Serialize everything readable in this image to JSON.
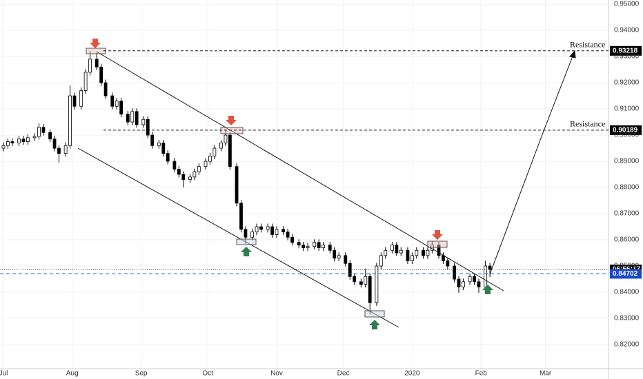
{
  "chart_data": {
    "type": "candlestick",
    "x": [
      0,
      2,
      4,
      7,
      9,
      11,
      14,
      16,
      18,
      21,
      23,
      25,
      28,
      30,
      32,
      35,
      37,
      39,
      42,
      44,
      46,
      49,
      51,
      53,
      56,
      58,
      60,
      63,
      65,
      67,
      70,
      72,
      74,
      77,
      79,
      81,
      84,
      86,
      88,
      91,
      93,
      95,
      98,
      100,
      102,
      105,
      107,
      109,
      112,
      114,
      116,
      119,
      121,
      123,
      126,
      128,
      130,
      133,
      135,
      137,
      140,
      142,
      144,
      147,
      149,
      151,
      154,
      156,
      158,
      161,
      163,
      165,
      168,
      170,
      172,
      175,
      177,
      179,
      182,
      184,
      186,
      189,
      191,
      193,
      196,
      198,
      200,
      203,
      205,
      207,
      210,
      212,
      214,
      217,
      219
    ],
    "open": [
      0.895,
      0.896,
      0.8975,
      0.897,
      0.8985,
      0.8975,
      0.899,
      0.8995,
      0.903,
      0.901,
      0.8985,
      0.895,
      0.893,
      0.896,
      0.915,
      0.911,
      0.917,
      0.924,
      0.929,
      0.926,
      0.92,
      0.915,
      0.911,
      0.913,
      0.908,
      0.905,
      0.909,
      0.904,
      0.906,
      0.9,
      0.896,
      0.897,
      0.893,
      0.89,
      0.887,
      0.885,
      0.883,
      0.884,
      0.886,
      0.888,
      0.89,
      0.892,
      0.895,
      0.897,
      0.9,
      0.888,
      0.874,
      0.864,
      0.861,
      0.863,
      0.865,
      0.864,
      0.865,
      0.862,
      0.864,
      0.863,
      0.861,
      0.859,
      0.858,
      0.857,
      0.8575,
      0.859,
      0.857,
      0.858,
      0.856,
      0.853,
      0.854,
      0.851,
      0.846,
      0.844,
      0.843,
      0.846,
      0.836,
      0.85,
      0.854,
      0.856,
      0.858,
      0.855,
      0.856,
      0.852,
      0.854,
      0.856,
      0.854,
      0.856,
      0.858,
      0.854,
      0.852,
      0.85,
      0.845,
      0.842,
      0.844,
      0.846,
      0.844,
      0.842,
      0.85
    ],
    "high": [
      0.8972,
      0.8987,
      0.8987,
      0.8997,
      0.8997,
      0.9002,
      0.9007,
      0.9045,
      0.9042,
      0.9022,
      0.8997,
      0.8962,
      0.8972,
      0.919,
      0.9162,
      0.9182,
      0.9252,
      0.9322,
      0.9315,
      0.9272,
      0.9212,
      0.9162,
      0.9142,
      0.9142,
      0.9092,
      0.9102,
      0.9102,
      0.9072,
      0.9072,
      0.9012,
      0.8982,
      0.8982,
      0.8942,
      0.8912,
      0.8882,
      0.8862,
      0.8852,
      0.8872,
      0.8892,
      0.8912,
      0.8932,
      0.8962,
      0.8982,
      0.9018,
      0.9012,
      0.8892,
      0.8752,
      0.8652,
      0.8642,
      0.8662,
      0.8662,
      0.8662,
      0.8662,
      0.8652,
      0.8652,
      0.8642,
      0.8622,
      0.8602,
      0.8592,
      0.8587,
      0.8602,
      0.8602,
      0.8592,
      0.8592,
      0.8572,
      0.8552,
      0.8552,
      0.8522,
      0.8472,
      0.8452,
      0.849,
      0.8472,
      0.8512,
      0.8552,
      0.8572,
      0.8592,
      0.8592,
      0.8572,
      0.8572,
      0.8552,
      0.8572,
      0.8572,
      0.8572,
      0.8595,
      0.8592,
      0.8552,
      0.8532,
      0.8512,
      0.8462,
      0.8452,
      0.8472,
      0.8472,
      0.8452,
      0.852,
      0.8512
    ],
    "low": [
      0.8938,
      0.8948,
      0.8958,
      0.8958,
      0.8963,
      0.8963,
      0.8978,
      0.8983,
      0.8998,
      0.8973,
      0.8938,
      0.8895,
      0.8918,
      0.8948,
      0.9098,
      0.9098,
      0.9158,
      0.9228,
      0.9248,
      0.9188,
      0.9138,
      0.9098,
      0.9098,
      0.9068,
      0.9038,
      0.9038,
      0.9028,
      0.9028,
      0.8988,
      0.8948,
      0.8948,
      0.8918,
      0.8888,
      0.8858,
      0.8838,
      0.88,
      0.8818,
      0.8828,
      0.8848,
      0.8868,
      0.8888,
      0.8908,
      0.8938,
      0.8958,
      0.8868,
      0.8728,
      0.8628,
      0.8585,
      0.8598,
      0.8618,
      0.8628,
      0.8628,
      0.8608,
      0.8608,
      0.8618,
      0.8598,
      0.8578,
      0.8568,
      0.8558,
      0.8558,
      0.8563,
      0.8558,
      0.8558,
      0.8548,
      0.8518,
      0.8518,
      0.8498,
      0.8448,
      0.8428,
      0.8418,
      0.8418,
      0.8315,
      0.8348,
      0.8488,
      0.8528,
      0.8548,
      0.8538,
      0.8538,
      0.8508,
      0.8508,
      0.8528,
      0.8528,
      0.8528,
      0.8548,
      0.8528,
      0.8508,
      0.8488,
      0.8438,
      0.8398,
      0.8408,
      0.8428,
      0.8428,
      0.8398,
      0.8408,
      0.8458
    ],
    "close": [
      0.896,
      0.8975,
      0.897,
      0.8985,
      0.8975,
      0.899,
      0.8995,
      0.903,
      0.901,
      0.8985,
      0.895,
      0.893,
      0.896,
      0.915,
      0.911,
      0.917,
      0.924,
      0.929,
      0.926,
      0.92,
      0.915,
      0.911,
      0.913,
      0.908,
      0.905,
      0.909,
      0.904,
      0.906,
      0.9,
      0.896,
      0.897,
      0.893,
      0.89,
      0.887,
      0.885,
      0.883,
      0.884,
      0.886,
      0.888,
      0.89,
      0.892,
      0.895,
      0.897,
      0.9,
      0.888,
      0.874,
      0.864,
      0.861,
      0.863,
      0.865,
      0.864,
      0.865,
      0.862,
      0.864,
      0.863,
      0.861,
      0.859,
      0.858,
      0.857,
      0.8575,
      0.859,
      0.857,
      0.858,
      0.856,
      0.853,
      0.854,
      0.851,
      0.846,
      0.844,
      0.843,
      0.846,
      0.836,
      0.85,
      0.854,
      0.856,
      0.858,
      0.855,
      0.856,
      0.852,
      0.854,
      0.856,
      0.854,
      0.856,
      0.858,
      0.854,
      0.852,
      0.85,
      0.845,
      0.842,
      0.844,
      0.846,
      0.844,
      0.842,
      0.85,
      0.8487
    ],
    "xlim": [
      -1.55,
      272.4
    ],
    "xticks": [
      {
        "value": 0,
        "label": "Jul"
      },
      {
        "value": 31,
        "label": "Aug"
      },
      {
        "value": 62,
        "label": "Sep"
      },
      {
        "value": 92,
        "label": "Oct"
      },
      {
        "value": 123,
        "label": "Nov"
      },
      {
        "value": 153,
        "label": "Dec"
      },
      {
        "value": 184,
        "label": "2020"
      },
      {
        "value": 215,
        "label": "Feb"
      },
      {
        "value": 244,
        "label": "Mar"
      }
    ],
    "ylim": [
      0.8108,
      0.9516
    ],
    "yticks": [
      {
        "value": 0.82,
        "label": "0.82000"
      },
      {
        "value": 0.83,
        "label": "0.83000"
      },
      {
        "value": 0.84,
        "label": "0.84000"
      },
      {
        "value": 0.85,
        "label": "0.85000"
      },
      {
        "value": 0.86,
        "label": "0.86000"
      },
      {
        "value": 0.87,
        "label": "0.87000"
      },
      {
        "value": 0.88,
        "label": "0.88000"
      },
      {
        "value": 0.89,
        "label": "0.89000"
      },
      {
        "value": 0.9,
        "label": "0.90000"
      },
      {
        "value": 0.91,
        "label": "0.91000"
      },
      {
        "value": 0.92,
        "label": "0.92000"
      },
      {
        "value": 0.93,
        "label": "0.93000"
      },
      {
        "value": 0.94,
        "label": "0.94000"
      },
      {
        "value": 0.95,
        "label": "0.95000"
      }
    ],
    "grid": true,
    "levels": [
      {
        "label": "Resistance",
        "value": 0.93218
      },
      {
        "label": "Resistance",
        "value": 0.90189
      }
    ],
    "countdown": "06:56:17",
    "bid": 0.84702,
    "up_color": "#ffffff",
    "down_color": "#000000",
    "bid_color": "#1848cc"
  }
}
